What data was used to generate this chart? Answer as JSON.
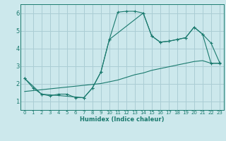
{
  "xlabel": "Humidex (Indice chaleur)",
  "background_color": "#cce8ec",
  "grid_color": "#aacdd4",
  "line_color": "#1a7a6e",
  "xlim": [
    -0.5,
    23.5
  ],
  "ylim": [
    0.5,
    6.5
  ],
  "xticks": [
    0,
    1,
    2,
    3,
    4,
    5,
    6,
    7,
    8,
    9,
    10,
    11,
    12,
    13,
    14,
    15,
    16,
    17,
    18,
    19,
    20,
    21,
    22,
    23
  ],
  "yticks": [
    1,
    2,
    3,
    4,
    5,
    6
  ],
  "line1_x": [
    0,
    1,
    2,
    3,
    4,
    5,
    6,
    7,
    8,
    9,
    10,
    11,
    12,
    13,
    14,
    15,
    16,
    17,
    18,
    19,
    20,
    21,
    22,
    23
  ],
  "line1_y": [
    2.3,
    1.75,
    1.4,
    1.3,
    1.4,
    1.4,
    1.2,
    1.2,
    1.75,
    2.65,
    4.5,
    6.05,
    6.1,
    6.1,
    6.0,
    4.7,
    4.35,
    4.4,
    4.5,
    4.6,
    5.2,
    4.8,
    4.3,
    3.2
  ],
  "line2_x": [
    0,
    1,
    2,
    3,
    4,
    5,
    6,
    7,
    8,
    9,
    10,
    11,
    12,
    13,
    14,
    15,
    16,
    17,
    18,
    19,
    20,
    21,
    22,
    23
  ],
  "line2_y": [
    1.55,
    1.6,
    1.65,
    1.7,
    1.75,
    1.8,
    1.85,
    1.9,
    1.95,
    2.0,
    2.1,
    2.2,
    2.35,
    2.5,
    2.6,
    2.75,
    2.85,
    2.95,
    3.05,
    3.15,
    3.25,
    3.3,
    3.15,
    3.15
  ],
  "line3_x": [
    0,
    2,
    7,
    8,
    9,
    10,
    14,
    15,
    16,
    17,
    18,
    19,
    20,
    21,
    22,
    23
  ],
  "line3_y": [
    2.3,
    1.4,
    1.2,
    1.75,
    2.65,
    4.5,
    6.0,
    4.7,
    4.35,
    4.4,
    4.5,
    4.6,
    5.2,
    4.8,
    3.15,
    3.15
  ]
}
